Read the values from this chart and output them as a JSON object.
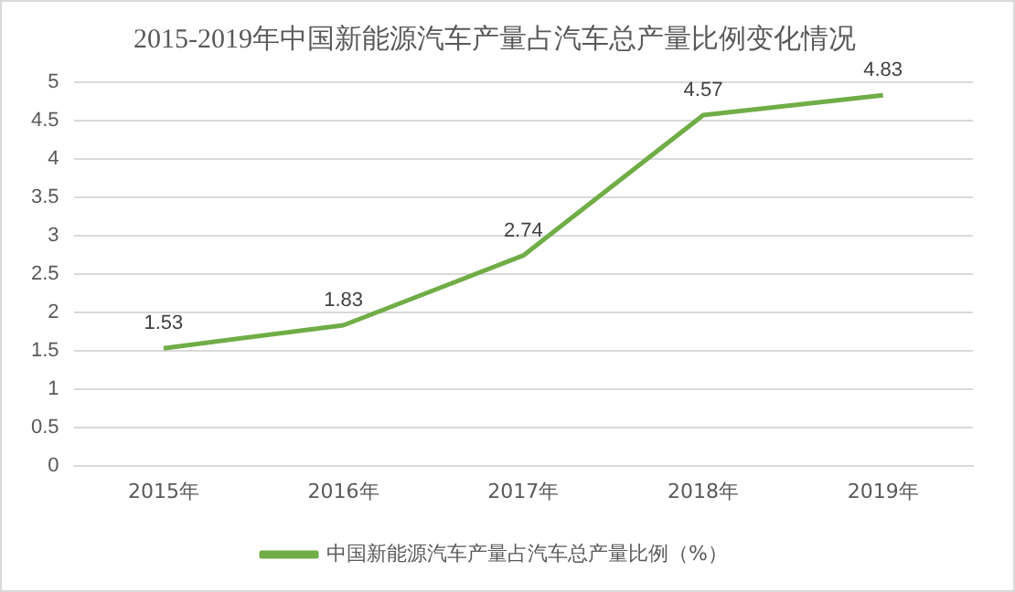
{
  "chart_data": {
    "type": "line",
    "title": "2015-2019年中国新能源汽车产量占汽车总产量比例变化情况",
    "categories": [
      "2015年",
      "2016年",
      "2017年",
      "2018年",
      "2019年"
    ],
    "series": [
      {
        "name": "中国新能源汽车产量占汽车总产量比例（%）",
        "color": "#70ad47",
        "values": [
          1.53,
          1.83,
          2.74,
          4.57,
          4.83
        ]
      }
    ],
    "ylim": [
      0,
      5
    ],
    "yticks": [
      0,
      0.5,
      1,
      1.5,
      2,
      2.5,
      3,
      3.5,
      4,
      4.5,
      5
    ],
    "grid": "y",
    "legend": "bottom",
    "marker": "none",
    "data_labels": true
  }
}
